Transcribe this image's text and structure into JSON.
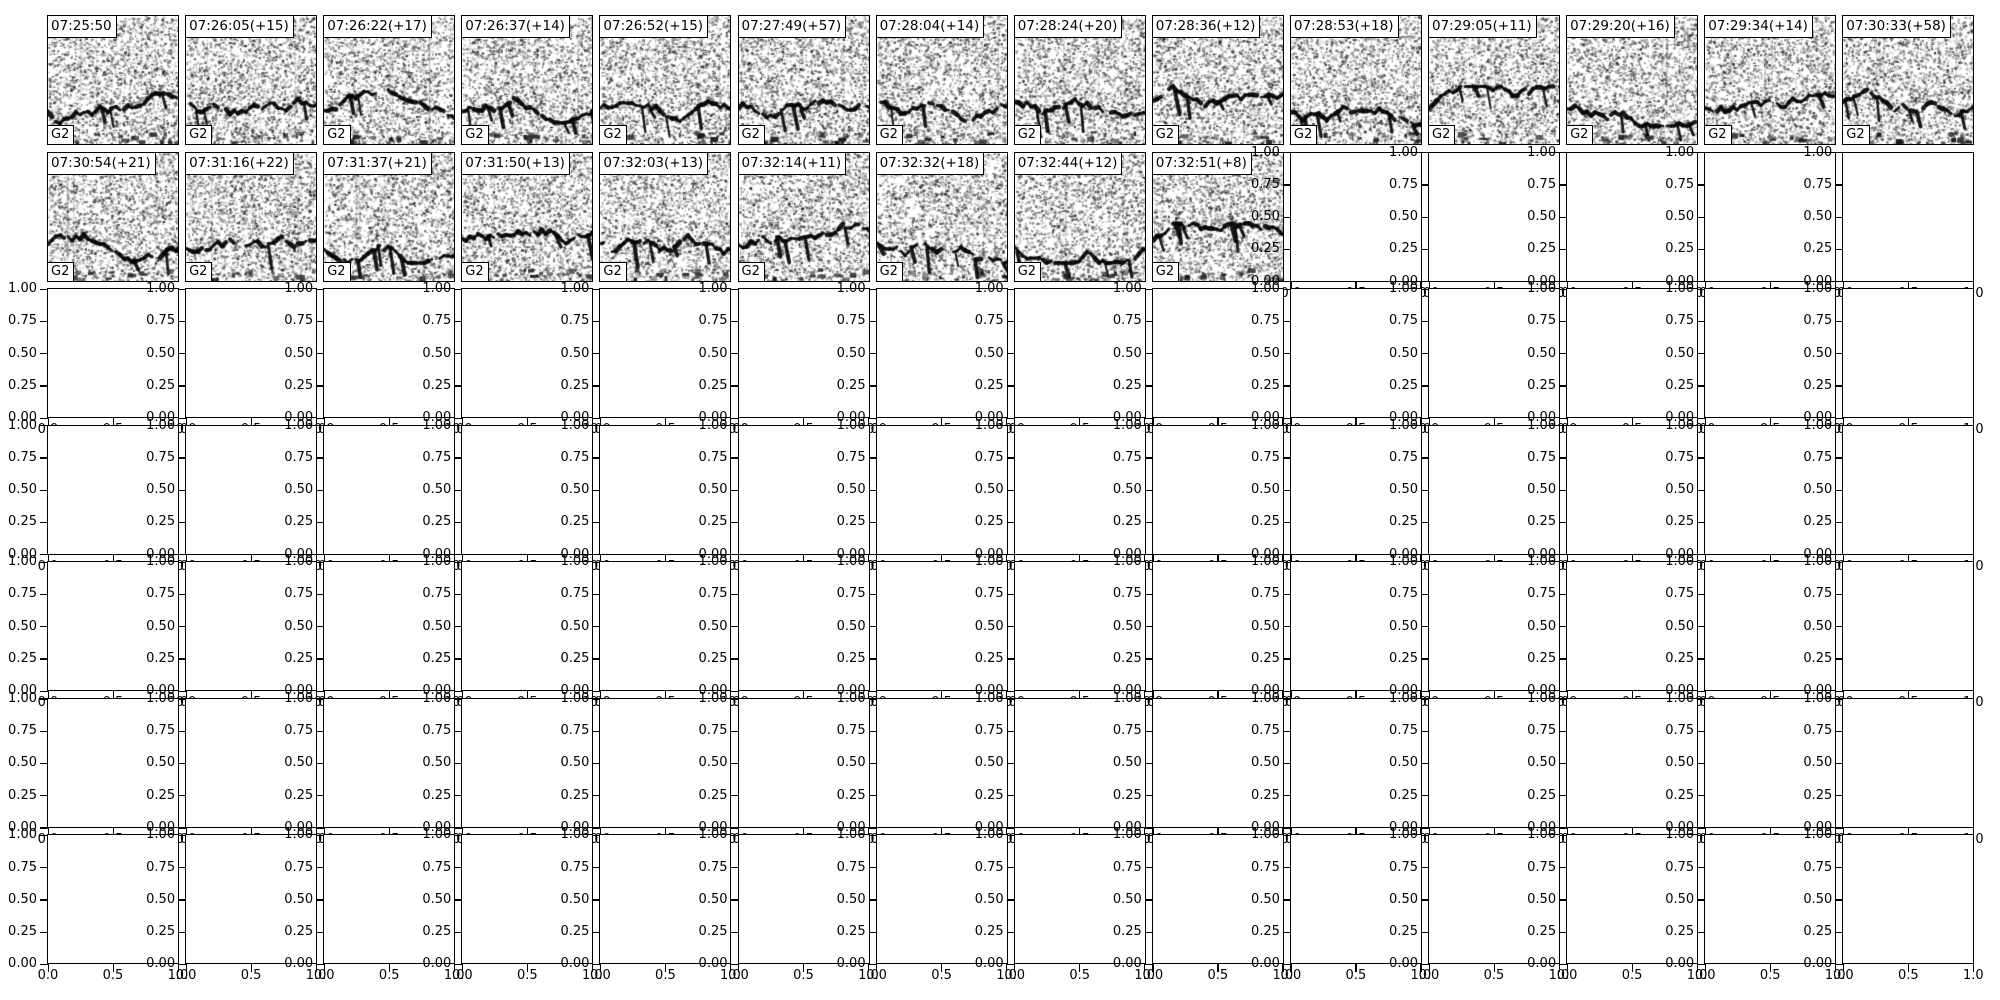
{
  "figure": {
    "grid": {
      "rows": 7,
      "cols": 14,
      "filled_panels": 23
    },
    "panel_label": "G2",
    "spectrogram_titles": [
      "07:25:50",
      "07:26:05(+15)",
      "07:26:22(+17)",
      "07:26:37(+14)",
      "07:26:52(+15)",
      "07:27:49(+57)",
      "07:28:04(+14)",
      "07:28:24(+20)",
      "07:28:36(+12)",
      "07:28:53(+18)",
      "07:29:05(+11)",
      "07:29:20(+16)",
      "07:29:34(+14)",
      "07:30:33(+58)",
      "07:30:54(+21)",
      "07:31:16(+22)",
      "07:31:37(+21)",
      "07:31:50(+13)",
      "07:32:03(+13)",
      "07:32:14(+11)",
      "07:32:32(+18)",
      "07:32:44(+12)",
      "07:32:51(+8)"
    ],
    "empty_axes": {
      "y_tick_labels": [
        "1.00",
        "0.75",
        "0.50",
        "0.25",
        "0.00"
      ],
      "x_tick_labels": [
        "0.0",
        "0.5",
        "1.0"
      ]
    },
    "colors": {
      "foreground": "#000000",
      "background": "#ffffff"
    }
  },
  "chart_data": {
    "type": "heatmap",
    "title": "",
    "grid": {
      "rows": 7,
      "cols": 14
    },
    "filled_cells_row_major": 23,
    "panel_corner_label": "G2",
    "panel_titles": [
      "07:25:50",
      "07:26:05(+15)",
      "07:26:22(+17)",
      "07:26:37(+14)",
      "07:26:52(+15)",
      "07:27:49(+57)",
      "07:28:04(+14)",
      "07:28:24(+20)",
      "07:28:36(+12)",
      "07:28:53(+18)",
      "07:29:05(+11)",
      "07:29:20(+16)",
      "07:29:34(+14)",
      "07:30:33(+58)",
      "07:30:54(+21)",
      "07:31:16(+22)",
      "07:31:37(+21)",
      "07:31:50(+13)",
      "07:32:03(+13)",
      "07:32:14(+11)",
      "07:32:32(+18)",
      "07:32:44(+12)",
      "07:32:51(+8)"
    ],
    "empty_axes": {
      "xlim": [
        0.0,
        1.0
      ],
      "ylim": [
        0.0,
        1.0
      ],
      "xticks": [
        0.0,
        0.5,
        1.0
      ],
      "yticks": [
        0.0,
        0.25,
        0.5,
        0.75,
        1.0
      ],
      "grid": false,
      "legend": "none"
    }
  }
}
